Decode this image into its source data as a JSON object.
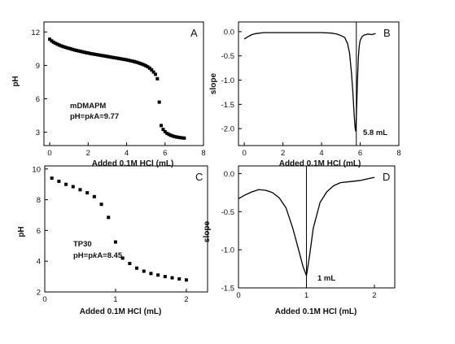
{
  "chart_data": [
    {
      "id": "A",
      "type": "scatter",
      "panel_label": "A",
      "xlabel": "Added 0.1M HCl (mL)",
      "ylabel": "pH",
      "xlim": [
        -0.3,
        8.0
      ],
      "ylim": [
        1.8,
        12.9
      ],
      "xticks": [
        0,
        2,
        4,
        6,
        8
      ],
      "yticks": [
        3,
        6,
        9,
        12
      ],
      "annotations": [
        "mDMAPM",
        "pH=pKA=9.77"
      ],
      "marker": "square",
      "series": [
        {
          "x": [
            0.0,
            0.1,
            0.2,
            0.3,
            0.4,
            0.5,
            0.6,
            0.7,
            0.8,
            0.9,
            1.0,
            1.1,
            1.2,
            1.3,
            1.4,
            1.5,
            1.6,
            1.7,
            1.8,
            1.9,
            2.0,
            2.1,
            2.2,
            2.3,
            2.4,
            2.5,
            2.6,
            2.7,
            2.8,
            2.9,
            3.0,
            3.1,
            3.2,
            3.3,
            3.4,
            3.5,
            3.6,
            3.7,
            3.8,
            3.9,
            4.0,
            4.1,
            4.2,
            4.3,
            4.4,
            4.5,
            4.6,
            4.7,
            4.8,
            4.9,
            5.0,
            5.1,
            5.2,
            5.3,
            5.4,
            5.5,
            5.6,
            5.7,
            5.8,
            5.9,
            6.0,
            6.1,
            6.2,
            6.3,
            6.4,
            6.5,
            6.6,
            6.7,
            6.8,
            6.9,
            7.0
          ],
          "y": [
            11.35,
            11.2,
            11.08,
            10.98,
            10.9,
            10.82,
            10.75,
            10.69,
            10.63,
            10.58,
            10.53,
            10.48,
            10.43,
            10.38,
            10.34,
            10.3,
            10.26,
            10.22,
            10.18,
            10.14,
            10.11,
            10.07,
            10.04,
            10.01,
            9.98,
            9.95,
            9.92,
            9.89,
            9.86,
            9.83,
            9.8,
            9.77,
            9.74,
            9.71,
            9.68,
            9.65,
            9.62,
            9.59,
            9.56,
            9.53,
            9.5,
            9.46,
            9.42,
            9.38,
            9.34,
            9.29,
            9.24,
            9.18,
            9.12,
            9.05,
            8.97,
            8.87,
            8.75,
            8.6,
            8.4,
            8.2,
            7.8,
            5.7,
            3.6,
            3.25,
            3.05,
            2.9,
            2.8,
            2.72,
            2.66,
            2.61,
            2.57,
            2.54,
            2.51,
            2.49,
            2.47
          ]
        }
      ]
    },
    {
      "id": "B",
      "type": "line",
      "panel_label": "B",
      "xlabel": "Added 0.1M HCl (mL)",
      "ylabel": "slope",
      "xlim": [
        -0.3,
        8.0
      ],
      "ylim": [
        -2.35,
        0.2
      ],
      "xticks": [
        0,
        2,
        4,
        6,
        8
      ],
      "yticks": [
        0.0,
        -0.5,
        -1.0,
        -1.5,
        -2.0
      ],
      "vline_x": 5.8,
      "annotations": [
        "5.8 mL"
      ],
      "series": [
        {
          "x": [
            0.0,
            0.2,
            0.4,
            0.6,
            1.0,
            2.0,
            3.0,
            4.0,
            4.5,
            4.8,
            5.0,
            5.2,
            5.35,
            5.45,
            5.55,
            5.62,
            5.68,
            5.73,
            5.76,
            5.79,
            5.82,
            5.86,
            5.9,
            5.95,
            6.0,
            6.1,
            6.2,
            6.4,
            6.6,
            6.8
          ],
          "y": [
            -0.15,
            -0.1,
            -0.06,
            -0.04,
            -0.02,
            -0.02,
            -0.02,
            -0.02,
            -0.03,
            -0.05,
            -0.08,
            -0.12,
            -0.25,
            -0.45,
            -0.85,
            -1.25,
            -1.65,
            -1.95,
            -2.05,
            -1.9,
            -1.5,
            -1.0,
            -0.55,
            -0.3,
            -0.18,
            -0.1,
            -0.07,
            -0.05,
            -0.06,
            -0.04
          ]
        }
      ]
    },
    {
      "id": "C",
      "type": "scatter",
      "panel_label": "C",
      "xlabel": "Added 0.1M HCl (mL)",
      "ylabel": "pH",
      "xlim": [
        0,
        2.3
      ],
      "ylim": [
        2,
        10.2
      ],
      "xticks": [
        0,
        1,
        2
      ],
      "yticks": [
        2,
        4,
        6,
        8,
        10
      ],
      "annotations": [
        "TP30",
        "pH=pKA=8.45"
      ],
      "marker": "square",
      "series": [
        {
          "x": [
            0.1,
            0.2,
            0.3,
            0.4,
            0.5,
            0.6,
            0.7,
            0.8,
            0.9,
            1.0,
            1.1,
            1.2,
            1.3,
            1.4,
            1.5,
            1.6,
            1.7,
            1.8,
            1.9,
            2.0
          ],
          "y": [
            9.4,
            9.2,
            9.0,
            8.85,
            8.65,
            8.45,
            8.2,
            7.7,
            6.85,
            5.25,
            4.2,
            3.85,
            3.55,
            3.35,
            3.2,
            3.1,
            3.0,
            2.92,
            2.85,
            2.78
          ]
        }
      ]
    },
    {
      "id": "D",
      "type": "line",
      "panel_label": "D",
      "xlabel": "Added 0.1M HCl (mL)",
      "ylabel": "slope",
      "xlim": [
        0,
        2.3
      ],
      "ylim": [
        -1.5,
        0.1
      ],
      "xticks": [
        0,
        1,
        2
      ],
      "yticks": [
        0.0,
        -0.5,
        -1.0,
        -1.5
      ],
      "vline_x": 1.0,
      "annotations": [
        "1 mL"
      ],
      "series": [
        {
          "x": [
            0.0,
            0.1,
            0.2,
            0.3,
            0.4,
            0.5,
            0.6,
            0.7,
            0.8,
            0.9,
            0.95,
            1.0,
            1.05,
            1.1,
            1.2,
            1.3,
            1.4,
            1.5,
            1.6,
            1.7,
            1.8,
            1.9,
            2.0
          ],
          "y": [
            -0.33,
            -0.28,
            -0.24,
            -0.21,
            -0.22,
            -0.25,
            -0.32,
            -0.45,
            -0.72,
            -1.05,
            -1.22,
            -1.34,
            -1.05,
            -0.72,
            -0.38,
            -0.24,
            -0.16,
            -0.12,
            -0.11,
            -0.1,
            -0.09,
            -0.07,
            -0.05
          ]
        }
      ]
    }
  ]
}
